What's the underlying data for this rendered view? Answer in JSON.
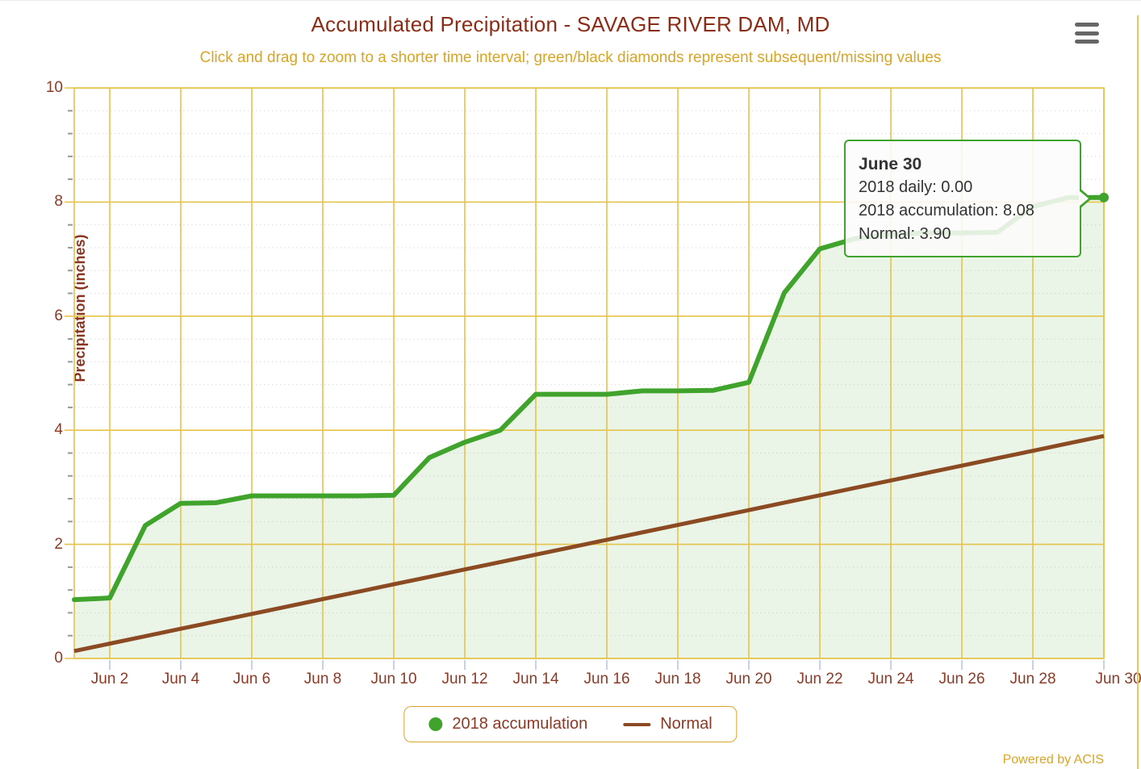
{
  "chart_data": {
    "type": "line",
    "title": "Accumulated Precipitation - SAVAGE RIVER DAM, MD",
    "subtitle": "Click and drag to zoom to a shorter time interval; green/black diamonds represent subsequent/missing values",
    "xlabel": "",
    "ylabel": "Precipitation (inches)",
    "ylim": [
      0,
      10
    ],
    "y_tick_labels": [
      "0",
      "2",
      "4",
      "6",
      "8",
      "10"
    ],
    "x_tick_labels": [
      "Jun 2",
      "Jun 4",
      "Jun 6",
      "Jun 8",
      "Jun 10",
      "Jun 12",
      "Jun 14",
      "Jun 16",
      "Jun 18",
      "Jun 20",
      "Jun 22",
      "Jun 24",
      "Jun 26",
      "Jun 28",
      "Jun 30"
    ],
    "categories": [
      "Jun 1",
      "Jun 2",
      "Jun 3",
      "Jun 4",
      "Jun 5",
      "Jun 6",
      "Jun 7",
      "Jun 8",
      "Jun 9",
      "Jun 10",
      "Jun 11",
      "Jun 12",
      "Jun 13",
      "Jun 14",
      "Jun 15",
      "Jun 16",
      "Jun 17",
      "Jun 18",
      "Jun 19",
      "Jun 20",
      "Jun 21",
      "Jun 22",
      "Jun 23",
      "Jun 24",
      "Jun 25",
      "Jun 26",
      "Jun 27",
      "Jun 28",
      "Jun 29",
      "Jun 30"
    ],
    "series": [
      {
        "name": "2018 accumulation",
        "color": "#3fa32c",
        "values": [
          1.03,
          1.06,
          2.33,
          2.72,
          2.73,
          2.85,
          2.85,
          2.85,
          2.85,
          2.86,
          3.52,
          3.79,
          4.0,
          4.63,
          4.63,
          4.63,
          4.69,
          4.69,
          4.7,
          4.84,
          6.41,
          7.18,
          7.36,
          7.43,
          7.46,
          7.46,
          7.47,
          7.92,
          8.08,
          8.08
        ]
      },
      {
        "name": "Normal",
        "color": "#8b4a21",
        "values": [
          0.13,
          0.26,
          0.39,
          0.52,
          0.65,
          0.78,
          0.91,
          1.04,
          1.17,
          1.3,
          1.43,
          1.56,
          1.69,
          1.82,
          1.95,
          2.08,
          2.21,
          2.34,
          2.47,
          2.6,
          2.73,
          2.86,
          2.99,
          3.12,
          3.25,
          3.38,
          3.51,
          3.64,
          3.77,
          3.9
        ]
      }
    ],
    "grid": "on",
    "legend_position": "bottom",
    "colors": {
      "major_grid": "#e6c34a",
      "minor_grid": "#bbbbbb",
      "area_fill": "rgba(63,163,44,0.11)",
      "x_tick": "#c6d2e8",
      "minor_y_tick": "#999999"
    }
  },
  "tooltip": {
    "date": "June 30",
    "lines": {
      "daily": "2018 daily: 0.00",
      "accumulation": "2018 accumulation: 8.08",
      "normal": "Normal: 3.90"
    },
    "point": {
      "category": "Jun 30",
      "value": 8.08
    }
  },
  "legend": {
    "items": [
      {
        "label": "2018 accumulation",
        "marker": "circle",
        "color": "#3fa32c"
      },
      {
        "label": "Normal",
        "marker": "line",
        "color": "#8b4a21"
      }
    ]
  },
  "footer": {
    "powered_by": "Powered by ACIS"
  }
}
